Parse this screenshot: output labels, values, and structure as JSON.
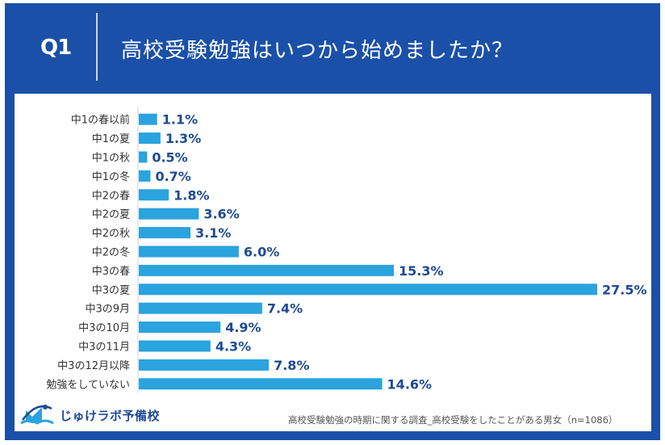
{
  "header": {
    "question_number": "Q1",
    "title": "高校受験勉強はいつから始めましたか？"
  },
  "footer": {
    "brand": "じゅけラボ予備校",
    "source": "高校受験勉強の時期に関する調査_高校受験をしたことがある男女（n=1086）"
  },
  "colors": {
    "frame": "#1a50a8",
    "bar": "#2aa3de",
    "value_label": "#1d4a94"
  },
  "chart_data": {
    "type": "bar",
    "orientation": "horizontal",
    "title": "高校受験勉強はいつから始めましたか？",
    "xlabel": "",
    "ylabel": "",
    "unit": "%",
    "xlim": [
      0,
      27.5
    ],
    "grid": false,
    "legend": "none",
    "categories": [
      "中1の春以前",
      "中1の夏",
      "中1の秋",
      "中1の冬",
      "中2の春",
      "中2の夏",
      "中2の秋",
      "中2の冬",
      "中3の春",
      "中3の夏",
      "中3の9月",
      "中3の10月",
      "中3の11月",
      "中3の12月以降",
      "勉強をしていない"
    ],
    "values": [
      1.1,
      1.3,
      0.5,
      0.7,
      1.8,
      3.6,
      3.1,
      6.0,
      15.3,
      27.5,
      7.4,
      4.9,
      4.3,
      7.8,
      14.6
    ],
    "value_labels": [
      "1.1%",
      "1.3%",
      "0.5%",
      "0.7%",
      "1.8%",
      "3.6%",
      "3.1%",
      "6.0%",
      "15.3%",
      "27.5%",
      "7.4%",
      "4.9%",
      "4.3%",
      "7.8%",
      "14.6%"
    ]
  }
}
